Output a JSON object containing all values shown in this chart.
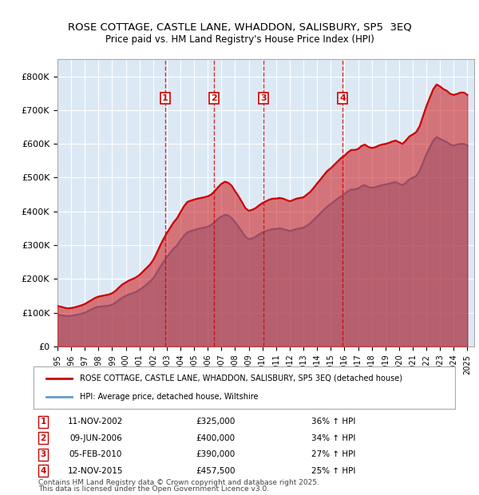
{
  "title": "ROSE COTTAGE, CASTLE LANE, WHADDON, SALISBURY, SP5  3EQ",
  "subtitle": "Price paid vs. HM Land Registry's House Price Index (HPI)",
  "ylabel_ticks": [
    "£0",
    "£100K",
    "£200K",
    "£300K",
    "£400K",
    "£500K",
    "£600K",
    "£700K",
    "£800K"
  ],
  "ytick_values": [
    0,
    100000,
    200000,
    300000,
    400000,
    500000,
    600000,
    700000,
    800000
  ],
  "ylim": [
    0,
    850000
  ],
  "xlim_start": 1995.0,
  "xlim_end": 2025.5,
  "background_color": "#ffffff",
  "plot_bg_color": "#dce9f5",
  "grid_color": "#ffffff",
  "red_line_color": "#cc0000",
  "blue_line_color": "#6699cc",
  "red_fill_color": "#cc000033",
  "blue_fill_color": "#6699cc33",
  "dashed_line_color": "#cc0000",
  "sale_markers": [
    {
      "num": 1,
      "year": 2002.87,
      "price": 325000,
      "date": "11-NOV-2002",
      "pct": "36%",
      "dir": "↑"
    },
    {
      "num": 2,
      "year": 2006.44,
      "price": 400000,
      "date": "09-JUN-2006",
      "pct": "34%",
      "dir": "↑"
    },
    {
      "num": 3,
      "year": 2010.09,
      "price": 390000,
      "date": "05-FEB-2010",
      "pct": "27%",
      "dir": "↑"
    },
    {
      "num": 4,
      "year": 2015.87,
      "price": 457500,
      "date": "12-NOV-2015",
      "pct": "25%",
      "dir": "↑"
    }
  ],
  "legend_red_label": "ROSE COTTAGE, CASTLE LANE, WHADDON, SALISBURY, SP5 3EQ (detached house)",
  "legend_blue_label": "HPI: Average price, detached house, Wiltshire",
  "footer_line1": "Contains HM Land Registry data © Crown copyright and database right 2025.",
  "footer_line2": "This data is licensed under the Open Government Licence v3.0.",
  "hpi_data": {
    "years": [
      1995.0,
      1995.25,
      1995.5,
      1995.75,
      1996.0,
      1996.25,
      1996.5,
      1996.75,
      1997.0,
      1997.25,
      1997.5,
      1997.75,
      1998.0,
      1998.25,
      1998.5,
      1998.75,
      1999.0,
      1999.25,
      1999.5,
      1999.75,
      2000.0,
      2000.25,
      2000.5,
      2000.75,
      2001.0,
      2001.25,
      2001.5,
      2001.75,
      2002.0,
      2002.25,
      2002.5,
      2002.75,
      2003.0,
      2003.25,
      2003.5,
      2003.75,
      2004.0,
      2004.25,
      2004.5,
      2004.75,
      2005.0,
      2005.25,
      2005.5,
      2005.75,
      2006.0,
      2006.25,
      2006.5,
      2006.75,
      2007.0,
      2007.25,
      2007.5,
      2007.75,
      2008.0,
      2008.25,
      2008.5,
      2008.75,
      2009.0,
      2009.25,
      2009.5,
      2009.75,
      2010.0,
      2010.25,
      2010.5,
      2010.75,
      2011.0,
      2011.25,
      2011.5,
      2011.75,
      2012.0,
      2012.25,
      2012.5,
      2012.75,
      2013.0,
      2013.25,
      2013.5,
      2013.75,
      2014.0,
      2014.25,
      2014.5,
      2014.75,
      2015.0,
      2015.25,
      2015.5,
      2015.75,
      2016.0,
      2016.25,
      2016.5,
      2016.75,
      2017.0,
      2017.25,
      2017.5,
      2017.75,
      2018.0,
      2018.25,
      2018.5,
      2018.75,
      2019.0,
      2019.25,
      2019.5,
      2019.75,
      2020.0,
      2020.25,
      2020.5,
      2020.75,
      2021.0,
      2021.25,
      2021.5,
      2021.75,
      2022.0,
      2022.25,
      2022.5,
      2022.75,
      2023.0,
      2023.25,
      2023.5,
      2023.75,
      2024.0,
      2024.25,
      2024.5,
      2024.75,
      2025.0
    ],
    "values": [
      95000,
      93000,
      91000,
      90000,
      91000,
      93000,
      95000,
      97000,
      100000,
      105000,
      110000,
      115000,
      118000,
      119000,
      120000,
      121000,
      124000,
      130000,
      138000,
      145000,
      150000,
      155000,
      158000,
      162000,
      168000,
      175000,
      183000,
      192000,
      202000,
      218000,
      235000,
      250000,
      265000,
      278000,
      290000,
      300000,
      315000,
      328000,
      338000,
      342000,
      345000,
      348000,
      350000,
      352000,
      355000,
      360000,
      368000,
      378000,
      385000,
      390000,
      388000,
      380000,
      368000,
      355000,
      340000,
      325000,
      318000,
      320000,
      325000,
      332000,
      338000,
      342000,
      345000,
      348000,
      348000,
      350000,
      348000,
      345000,
      342000,
      345000,
      348000,
      350000,
      352000,
      358000,
      365000,
      375000,
      385000,
      395000,
      405000,
      415000,
      422000,
      430000,
      438000,
      445000,
      452000,
      460000,
      465000,
      465000,
      468000,
      475000,
      478000,
      472000,
      470000,
      472000,
      475000,
      478000,
      480000,
      482000,
      485000,
      487000,
      482000,
      478000,
      485000,
      495000,
      500000,
      505000,
      520000,
      545000,
      570000,
      590000,
      610000,
      620000,
      615000,
      610000,
      605000,
      598000,
      595000,
      598000,
      600000,
      600000,
      595000
    ]
  },
  "price_data": {
    "years": [
      1995.0,
      1995.25,
      1995.5,
      1995.75,
      1996.0,
      1996.25,
      1996.5,
      1996.75,
      1997.0,
      1997.25,
      1997.5,
      1997.75,
      1998.0,
      1998.25,
      1998.5,
      1998.75,
      1999.0,
      1999.25,
      1999.5,
      1999.75,
      2000.0,
      2000.25,
      2000.5,
      2000.75,
      2001.0,
      2001.25,
      2001.5,
      2001.75,
      2002.0,
      2002.25,
      2002.5,
      2002.75,
      2003.0,
      2003.25,
      2003.5,
      2003.75,
      2004.0,
      2004.25,
      2004.5,
      2004.75,
      2005.0,
      2005.25,
      2005.5,
      2005.75,
      2006.0,
      2006.25,
      2006.5,
      2006.75,
      2007.0,
      2007.25,
      2007.5,
      2007.75,
      2008.0,
      2008.25,
      2008.5,
      2008.75,
      2009.0,
      2009.25,
      2009.5,
      2009.75,
      2010.0,
      2010.25,
      2010.5,
      2010.75,
      2011.0,
      2011.25,
      2011.5,
      2011.75,
      2012.0,
      2012.25,
      2012.5,
      2012.75,
      2013.0,
      2013.25,
      2013.5,
      2013.75,
      2014.0,
      2014.25,
      2014.5,
      2014.75,
      2015.0,
      2015.25,
      2015.5,
      2015.75,
      2016.0,
      2016.25,
      2016.5,
      2016.75,
      2017.0,
      2017.25,
      2017.5,
      2017.75,
      2018.0,
      2018.25,
      2018.5,
      2018.75,
      2019.0,
      2019.25,
      2019.5,
      2019.75,
      2020.0,
      2020.25,
      2020.5,
      2020.75,
      2021.0,
      2021.25,
      2021.5,
      2021.75,
      2022.0,
      2022.25,
      2022.5,
      2022.75,
      2023.0,
      2023.25,
      2023.5,
      2023.75,
      2024.0,
      2024.25,
      2024.5,
      2024.75,
      2025.0
    ],
    "values": [
      120000,
      118000,
      115000,
      113000,
      114000,
      116000,
      119000,
      122000,
      126000,
      132000,
      138000,
      144000,
      148000,
      150000,
      152000,
      154000,
      158000,
      165000,
      175000,
      184000,
      190000,
      196000,
      200000,
      205000,
      212000,
      222000,
      232000,
      242000,
      256000,
      276000,
      298000,
      318000,
      336000,
      352000,
      368000,
      380000,
      398000,
      415000,
      428000,
      432000,
      435000,
      438000,
      440000,
      442000,
      445000,
      450000,
      460000,
      472000,
      482000,
      488000,
      485000,
      476000,
      460000,
      445000,
      428000,
      410000,
      402000,
      405000,
      410000,
      418000,
      425000,
      430000,
      435000,
      438000,
      438000,
      440000,
      438000,
      434000,
      430000,
      434000,
      438000,
      440000,
      442000,
      450000,
      458000,
      470000,
      483000,
      495000,
      508000,
      520000,
      528000,
      538000,
      548000,
      558000,
      565000,
      575000,
      582000,
      582000,
      585000,
      594000,
      598000,
      591000,
      588000,
      590000,
      595000,
      598000,
      600000,
      603000,
      607000,
      610000,
      605000,
      600000,
      610000,
      622000,
      628000,
      635000,
      652000,
      682000,
      712000,
      737000,
      762000,
      776000,
      770000,
      762000,
      757000,
      748000,
      745000,
      748000,
      752000,
      752000,
      745000
    ]
  }
}
